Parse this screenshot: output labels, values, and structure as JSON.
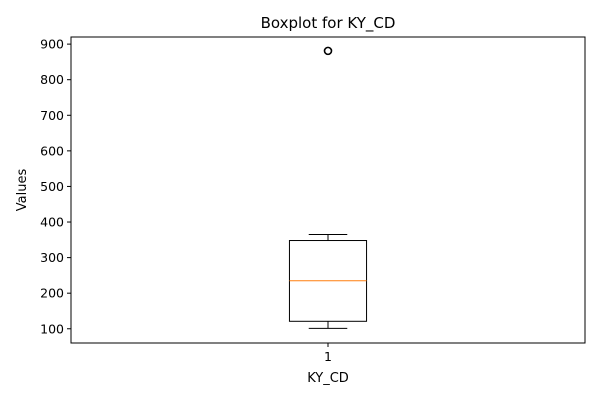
{
  "chart_data": {
    "type": "boxplot",
    "title": "Boxplot for KY_CD",
    "xlabel": "KY_CD",
    "ylabel": "Values",
    "categories": [
      "1"
    ],
    "ylim": [
      60,
      920
    ],
    "yticks": [
      100,
      200,
      300,
      400,
      500,
      600,
      700,
      800,
      900
    ],
    "grid": false,
    "boxes": [
      {
        "category": "1",
        "whisker_low": 101,
        "q1": 121,
        "median": 235,
        "q3": 348,
        "whisker_high": 365,
        "outliers": [
          881
        ]
      }
    ],
    "colors": {
      "box": "#000000",
      "median": "#ff7f0e",
      "whisker": "#000000",
      "flier": "#000000"
    }
  }
}
